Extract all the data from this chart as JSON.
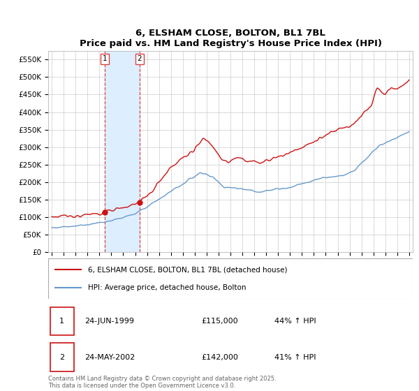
{
  "title": "6, ELSHAM CLOSE, BOLTON, BL1 7BL",
  "subtitle": "Price paid vs. HM Land Registry's House Price Index (HPI)",
  "ylim": [
    0,
    575000
  ],
  "yticks": [
    0,
    50000,
    100000,
    150000,
    200000,
    250000,
    300000,
    350000,
    400000,
    450000,
    500000,
    550000
  ],
  "ytick_labels": [
    "£0",
    "£50K",
    "£100K",
    "£150K",
    "£200K",
    "£250K",
    "£300K",
    "£350K",
    "£400K",
    "£450K",
    "£500K",
    "£550K"
  ],
  "xlim_min": 1994.7,
  "xlim_max": 2025.3,
  "sale1_date": 1999.47,
  "sale1_price": 115000,
  "sale2_date": 2002.38,
  "sale2_price": 142000,
  "line_color_house": "#cc1111",
  "line_color_hpi": "#6699cc",
  "shade_color": "#ddeeff",
  "vline_color": "#dd4444",
  "legend_house": "6, ELSHAM CLOSE, BOLTON, BL1 7BL (detached house)",
  "legend_hpi": "HPI: Average price, detached house, Bolton",
  "table_row1": [
    "1",
    "24-JUN-1999",
    "£115,000",
    "44% ↑ HPI"
  ],
  "table_row2": [
    "2",
    "24-MAY-2002",
    "£142,000",
    "41% ↑ HPI"
  ],
  "footnote": "Contains HM Land Registry data © Crown copyright and database right 2025.\nThis data is licensed under the Open Government Licence v3.0.",
  "background_color": "#ffffff",
  "grid_color": "#cccccc"
}
